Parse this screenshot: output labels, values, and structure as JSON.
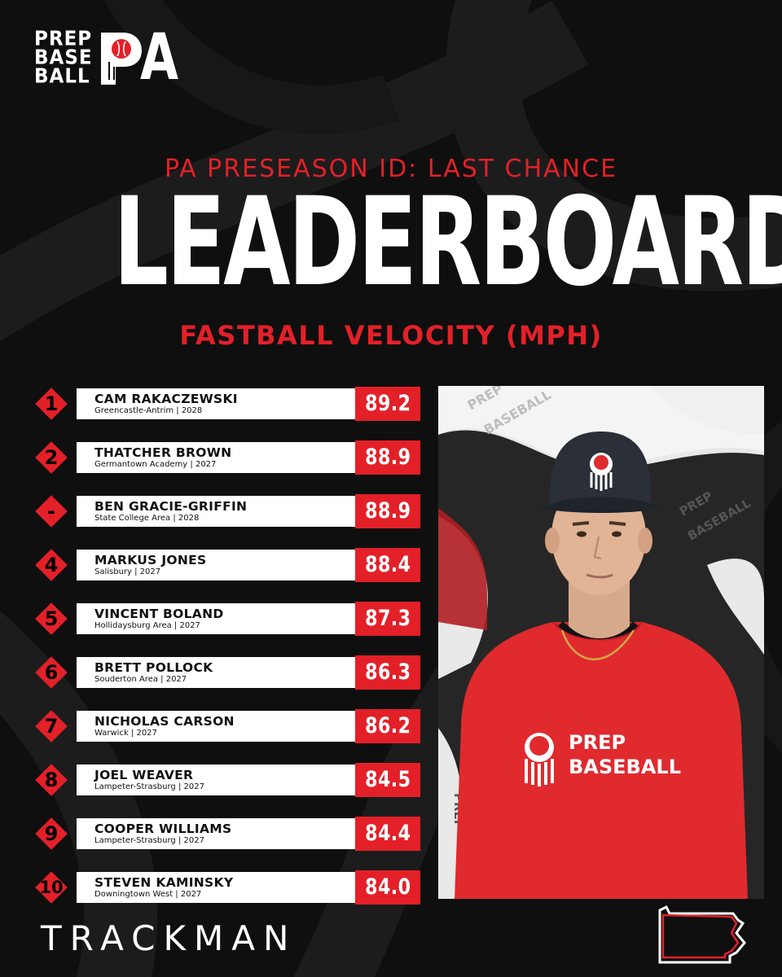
{
  "logo": {
    "lines": [
      "PREP",
      "BASE",
      "BALL"
    ],
    "state_letters": "PA"
  },
  "header": {
    "subtitle": "PA PRESEASON ID: LAST CHANCE",
    "title": "LEADERBOARD",
    "metric": "FASTBALL VELOCITY (MPH)"
  },
  "leaderboard": [
    {
      "rank": "1",
      "name": "CAM RAKACZEWSKI",
      "school": "Greencastle-Antrim | 2028",
      "velo": "89.2"
    },
    {
      "rank": "2",
      "name": "THATCHER BROWN",
      "school": "Germantown Academy | 2027",
      "velo": "88.9"
    },
    {
      "rank": "-",
      "name": "BEN GRACIE-GRIFFIN",
      "school": "State College Area | 2028",
      "velo": "88.9"
    },
    {
      "rank": "4",
      "name": "MARKUS JONES",
      "school": "Salisbury | 2027",
      "velo": "88.4"
    },
    {
      "rank": "5",
      "name": "VINCENT BOLAND",
      "school": "Hollidaysburg Area | 2027",
      "velo": "87.3"
    },
    {
      "rank": "6",
      "name": "BRETT POLLOCK",
      "school": "Souderton Area | 2027",
      "velo": "86.3"
    },
    {
      "rank": "7",
      "name": "NICHOLAS CARSON",
      "school": "Warwick | 2027",
      "velo": "86.2"
    },
    {
      "rank": "8",
      "name": "JOEL WEAVER",
      "school": "Lampeter-Strasburg | 2027",
      "velo": "84.5"
    },
    {
      "rank": "9",
      "name": "COOPER WILLIAMS",
      "school": "Lampeter-Strasburg | 2027",
      "velo": "84.4"
    },
    {
      "rank": "10",
      "name": "STEVEN KAMINSKY",
      "school": "Downingtown West | 2027",
      "velo": "84.0"
    }
  ],
  "photo": {
    "shirt_text": [
      "PREP",
      "BASEBALL"
    ],
    "backdrop_text": [
      "PREP",
      "BASEBALL"
    ]
  },
  "footer": {
    "sponsor": "TRACKMAN"
  },
  "colors": {
    "background": "#0f0f0f",
    "accent_red": "#e32028",
    "row_bar": "#ffffff",
    "text_light": "#ffffff"
  },
  "icons": [
    "prep-baseball-shield-icon",
    "pennsylvania-state-outline-icon"
  ]
}
